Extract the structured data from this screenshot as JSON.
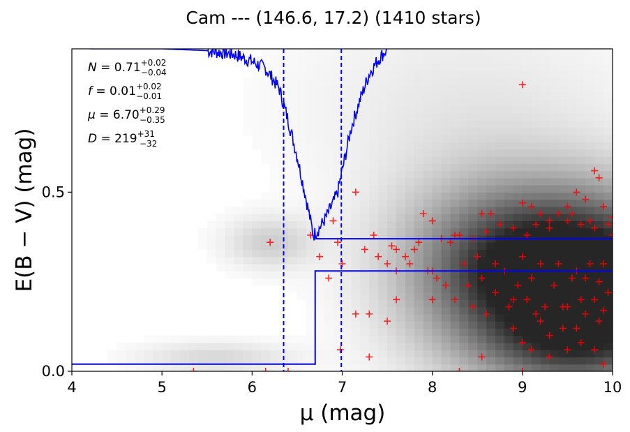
{
  "chart_data": {
    "type": "scatter",
    "title": "Cam --- (146.6, 17.2) (1410 stars)",
    "xlabel": "μ (mag)",
    "ylabel": "E(B − V) (mag)",
    "xlim": [
      4,
      10
    ],
    "ylim": [
      0.0,
      0.9
    ],
    "xticks": [
      4,
      5,
      6,
      7,
      8,
      9,
      10
    ],
    "xtick_labels": [
      "4",
      "5",
      "6",
      "7",
      "8",
      "9",
      "10"
    ],
    "yticks": [
      0.0,
      0.5
    ],
    "ytick_labels": [
      "0.0",
      "0.5"
    ],
    "grid": false,
    "colors": {
      "stars": "#ff0000",
      "model": "#0000ff",
      "density": "gray"
    },
    "annotations": [
      {
        "symbol": "N",
        "value": "0.71",
        "plus": "+0.02",
        "minus": "−0.04"
      },
      {
        "symbol": "f",
        "value": "0.01",
        "plus": "+0.02",
        "minus": "−0.01"
      },
      {
        "symbol": "μ",
        "value": "6.70",
        "plus": "+0.29",
        "minus": "−0.35"
      },
      {
        "symbol": "D",
        "value": "219",
        "plus": "+31",
        "minus": "−32"
      }
    ],
    "vlines_dashed": [
      6.35,
      6.99
    ],
    "step_model": {
      "x_break": 6.7,
      "foreground_ebv": 0.02,
      "background_ebv": 0.28,
      "background_upper": 0.37
    },
    "density_peaks": [
      {
        "x": 9.9,
        "y": 0.24,
        "sx": 0.9,
        "sy": 0.17,
        "amp": 0.85
      },
      {
        "x": 9.2,
        "y": 0.3,
        "sx": 0.9,
        "sy": 0.15,
        "amp": 0.5
      },
      {
        "x": 8.6,
        "y": 0.27,
        "sx": 0.8,
        "sy": 0.2,
        "amp": 0.35
      },
      {
        "x": 9.6,
        "y": 0.06,
        "sx": 0.7,
        "sy": 0.08,
        "amp": 0.35
      },
      {
        "x": 6.2,
        "y": 0.36,
        "sx": 0.35,
        "sy": 0.05,
        "amp": 0.22
      },
      {
        "x": 5.6,
        "y": 0.04,
        "sx": 0.6,
        "sy": 0.03,
        "amp": 0.18
      },
      {
        "x": 8.4,
        "y": 0.75,
        "sx": 1.4,
        "sy": 0.2,
        "amp": 0.1
      }
    ],
    "likelihood_curve": {
      "x": [
        4.2,
        4.6,
        5.0,
        5.5,
        5.8,
        6.0,
        6.15,
        6.3,
        6.4,
        6.5,
        6.6,
        6.68,
        6.75,
        6.82,
        6.9,
        6.95,
        7.0,
        7.05,
        7.1,
        7.2,
        7.3,
        7.4,
        7.5
      ],
      "y": [
        0.9,
        0.9,
        0.9,
        0.895,
        0.885,
        0.865,
        0.845,
        0.79,
        0.7,
        0.6,
        0.48,
        0.38,
        0.4,
        0.43,
        0.47,
        0.5,
        0.56,
        0.62,
        0.68,
        0.76,
        0.83,
        0.87,
        0.9
      ]
    },
    "stars": {
      "x": [
        9.0,
        9.8,
        9.85,
        9.6,
        9.7,
        9.9,
        9.5,
        9.0,
        9.1,
        9.2,
        9.4,
        9.55,
        9.75,
        10.0,
        9.3,
        8.55,
        8.65,
        7.9,
        8.0,
        7.15,
        6.9,
        6.95,
        7.35,
        7.55,
        7.6,
        7.8,
        7.7,
        7.85,
        8.1,
        8.2,
        8.25,
        8.3,
        8.45,
        8.6,
        8.75,
        8.9,
        9.05,
        9.15,
        9.3,
        9.5,
        9.65,
        9.8,
        9.95,
        10.0,
        7.5,
        7.4,
        7.25,
        7.0,
        6.85,
        6.65,
        6.2,
        6.75,
        7.6,
        7.75,
        7.95,
        8.05,
        8.35,
        8.5,
        8.7,
        8.8,
        9.0,
        9.2,
        9.4,
        9.6,
        9.75,
        9.9,
        8.15,
        8.4,
        8.55,
        8.95,
        9.1,
        9.35,
        9.55,
        9.7,
        9.85,
        8.25,
        8.45,
        8.9,
        9.05,
        9.25,
        9.45,
        9.65,
        9.8,
        9.95,
        7.15,
        7.3,
        7.6,
        8.6,
        8.85,
        9.15,
        9.5,
        9.7,
        9.9,
        8.9,
        9.2,
        9.45,
        9.6,
        9.85,
        8.0,
        9.0,
        9.3,
        9.65,
        5.35,
        6.15,
        6.4,
        7.3,
        8.3,
        8.55,
        9.0,
        8.0,
        8.7,
        9.1,
        9.5,
        9.8,
        6.98,
        7.5,
        9.3,
        9.9
      ],
      "y": [
        0.8,
        0.56,
        0.54,
        0.5,
        0.48,
        0.46,
        0.46,
        0.47,
        0.46,
        0.44,
        0.44,
        0.44,
        0.42,
        0.43,
        0.42,
        0.44,
        0.44,
        0.44,
        0.42,
        0.5,
        0.42,
        0.36,
        0.38,
        0.35,
        0.34,
        0.34,
        0.32,
        0.36,
        0.37,
        0.36,
        0.38,
        0.38,
        0.37,
        0.39,
        0.41,
        0.4,
        0.38,
        0.41,
        0.4,
        0.42,
        0.41,
        0.4,
        0.41,
        0.38,
        0.3,
        0.32,
        0.34,
        0.3,
        0.26,
        0.38,
        0.36,
        0.32,
        0.28,
        0.3,
        0.28,
        0.26,
        0.3,
        0.32,
        0.3,
        0.28,
        0.32,
        0.3,
        0.3,
        0.28,
        0.3,
        0.3,
        0.24,
        0.24,
        0.26,
        0.24,
        0.26,
        0.24,
        0.26,
        0.26,
        0.25,
        0.2,
        0.18,
        0.2,
        0.2,
        0.18,
        0.18,
        0.2,
        0.2,
        0.22,
        0.16,
        0.16,
        0.2,
        0.16,
        0.18,
        0.16,
        0.18,
        0.16,
        0.17,
        0.12,
        0.14,
        0.12,
        0.12,
        0.14,
        0.28,
        0.08,
        0.1,
        0.08,
        0.0,
        0.0,
        0.0,
        0.04,
        0.0,
        0.04,
        0.0,
        0.2,
        0.22,
        0.06,
        0.06,
        0.06,
        0.06,
        0.14,
        0.04,
        0.02
      ]
    }
  }
}
